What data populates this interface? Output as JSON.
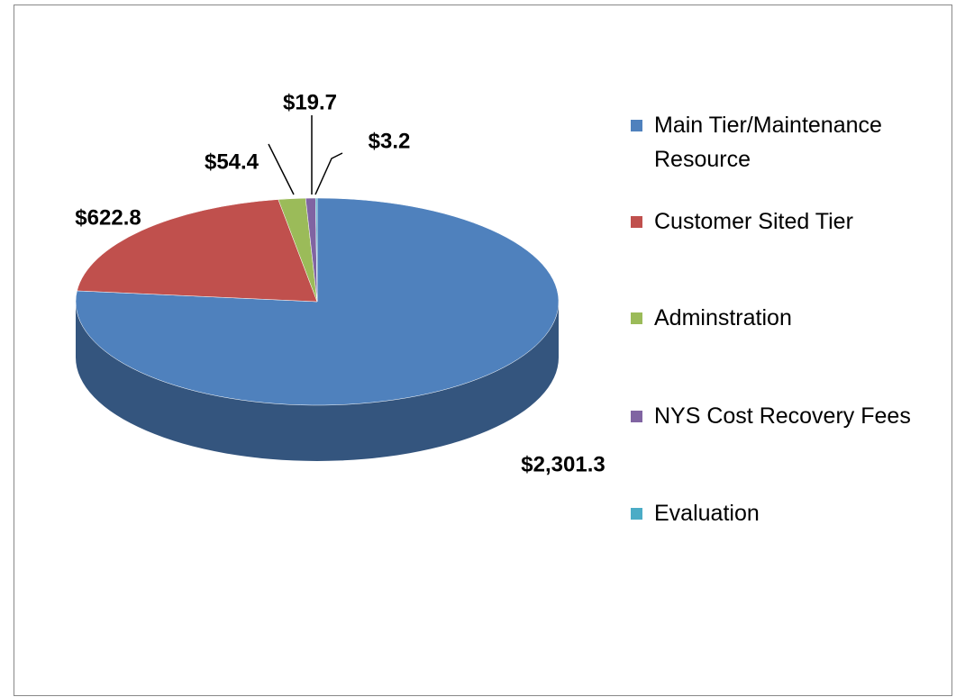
{
  "chart_data": {
    "type": "pie",
    "categories": [
      "Main Tier/Maintenance Resource",
      "Customer Sited Tier",
      "Adminstration",
      "NYS Cost Recovery Fees",
      "Evaluation"
    ],
    "values": [
      2301.3,
      622.8,
      54.4,
      19.7,
      3.2
    ],
    "value_labels": [
      "$2,301.3",
      "$622.8",
      "$54.4",
      "$19.7",
      "$3.2"
    ],
    "colors": [
      "#4f81bd",
      "#c0504d",
      "#9bbb59",
      "#8064a2",
      "#4bacc6"
    ],
    "side_colors": [
      "#34557e",
      "#813533",
      "#67803a",
      "#54426d",
      "#317485"
    ],
    "legend": "right"
  }
}
